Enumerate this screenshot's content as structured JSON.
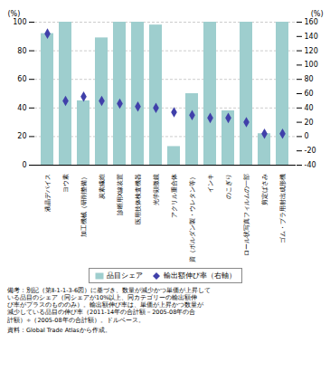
{
  "chart_data": {
    "type": "bar",
    "categories": [
      "液晶デバイス",
      "ヨウ素",
      "加工機械（研削整備）",
      "炭素繊維",
      "診断用X線装置",
      "医用技体検査機器",
      "光学顕微鏡",
      "アクリル重合体",
      "資（ボルダン製・ウレタン等）",
      "インキ",
      "のこぎり",
      "ロール状写真フィルムの一部",
      "剪定ばさみ",
      "ゴム・プラ用射出成形機"
    ],
    "series": [
      {
        "name": "品目シェア",
        "type": "bar",
        "color": "#9ECECE",
        "values": [
          92,
          100,
          45,
          89,
          100,
          100,
          98,
          13,
          50,
          100,
          38,
          100,
          22,
          100
        ]
      },
      {
        "name": "輸出額伸び率（右軸）",
        "type": "scatter",
        "marker": "diamond",
        "color": "#4040AA",
        "axis": "y2",
        "values": [
          144,
          50,
          56,
          50,
          46,
          42,
          40,
          34,
          30,
          26,
          26,
          20,
          4,
          4
        ]
      }
    ],
    "ylim": [
      0,
      100
    ],
    "yticks": [
      0,
      20,
      40,
      60,
      80,
      100
    ],
    "y2lim": [
      -40,
      160
    ],
    "y2ticks": [
      -40,
      -20,
      0,
      20,
      40,
      60,
      80,
      100,
      120,
      140,
      160
    ],
    "ylabel": "(%)",
    "y2label": "(%)",
    "grid": true,
    "legend": "bottom",
    "annotations": [
      "備考：別記（第Ⅱ-1-1-3-6図）に基づき、数量が減少かつ単価が上昇して",
      "いる品目のシェア（同シェアが10%以上、同カテゴリーの輸出額伸",
      "び率がプラスのもののみ）。輸出額伸び率は、単価が上昇かつ数量が",
      "減少している品目の伸び率（2011-14年の合計額－2005-08年の合",
      "計額）÷（2005-08年の合計額）。ドルベース。",
      "資料：Global Trade Atlasから作成。"
    ]
  }
}
